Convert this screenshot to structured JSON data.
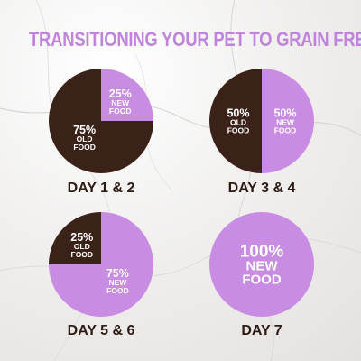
{
  "title": "TRANSITIONING YOUR PET TO GRAIN FREE",
  "colors": {
    "old_food": "#3a2218",
    "new_food": "#c98ce3",
    "title": "#c084dc",
    "label": "#2d1a12"
  },
  "chart_data": [
    {
      "type": "pie",
      "label": "DAY 1 & 2",
      "slices": [
        {
          "pct": "25%",
          "name": "NEW FOOD",
          "value": 25,
          "kind": "new_food"
        },
        {
          "pct": "75%",
          "name": "OLD FOOD",
          "value": 75,
          "kind": "old_food"
        }
      ]
    },
    {
      "type": "pie",
      "label": "DAY 3 & 4",
      "slices": [
        {
          "pct": "50%",
          "name": "NEW FOOD",
          "value": 50,
          "kind": "new_food"
        },
        {
          "pct": "50%",
          "name": "OLD FOOD",
          "value": 50,
          "kind": "old_food"
        }
      ]
    },
    {
      "type": "pie",
      "label": "DAY 5 & 6",
      "slices": [
        {
          "pct": "75%",
          "name": "NEW FOOD",
          "value": 75,
          "kind": "new_food"
        },
        {
          "pct": "25%",
          "name": "OLD FOOD",
          "value": 25,
          "kind": "old_food"
        }
      ]
    },
    {
      "type": "pie",
      "label": "DAY 7",
      "slices": [
        {
          "pct": "100%",
          "name": "NEW FOOD",
          "value": 100,
          "kind": "new_food"
        }
      ]
    }
  ]
}
